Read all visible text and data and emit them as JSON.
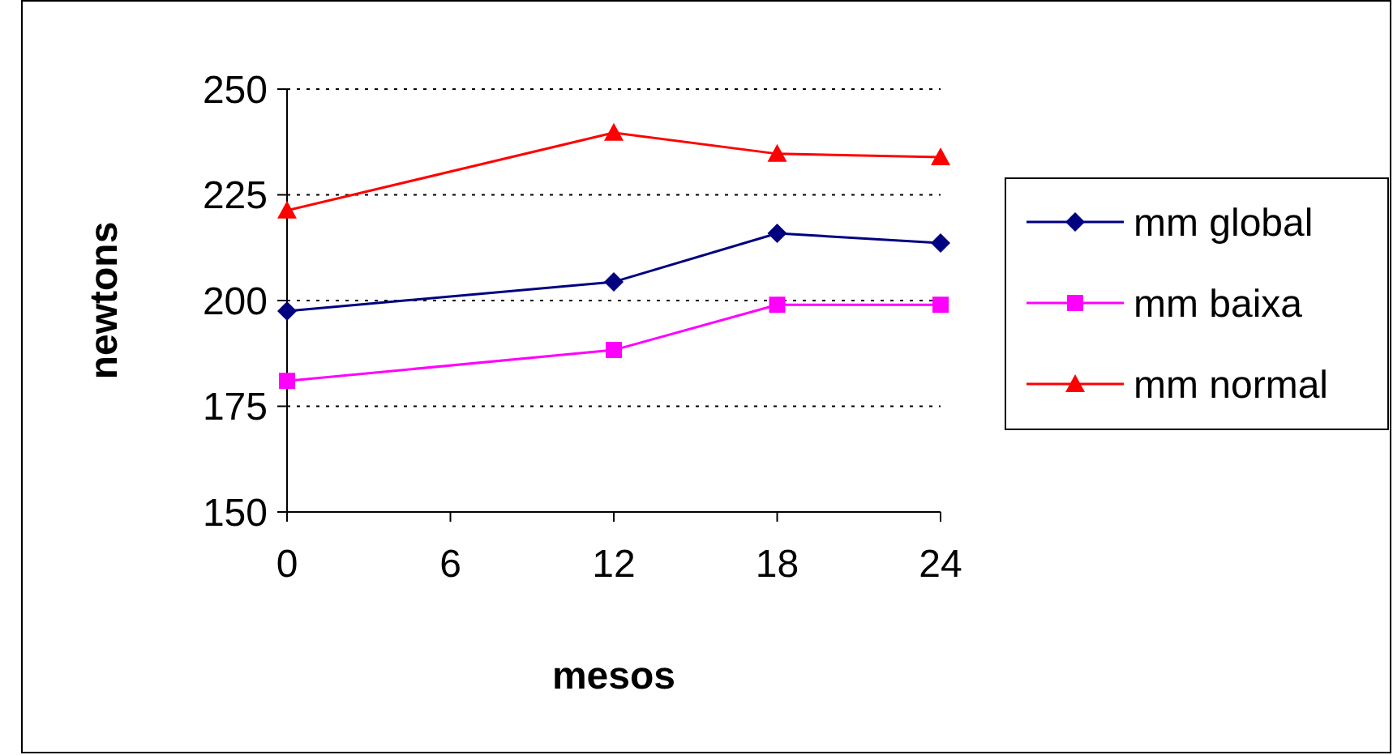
{
  "chart_data": {
    "type": "line",
    "xlabel": "mesos",
    "ylabel": "newtons",
    "x": [
      0,
      12,
      18,
      24
    ],
    "xlim": [
      0,
      24
    ],
    "xticks": [
      0,
      6,
      12,
      18,
      24
    ],
    "ylim": [
      150,
      250
    ],
    "yticks": [
      150,
      175,
      200,
      225,
      250
    ],
    "grid": "y",
    "legend": "right",
    "series": [
      {
        "name": "mm global",
        "color": "#000080",
        "marker": "diamond",
        "values": [
          197.5,
          204.4,
          215.9,
          213.6
        ]
      },
      {
        "name": "mm baixa",
        "color": "#ff00ff",
        "marker": "square",
        "values": [
          181,
          188.3,
          199,
          199
        ]
      },
      {
        "name": "mm normal",
        "color": "#ff0000",
        "marker": "triangle",
        "values": [
          221.3,
          239.7,
          234.7,
          233.9
        ]
      }
    ]
  }
}
